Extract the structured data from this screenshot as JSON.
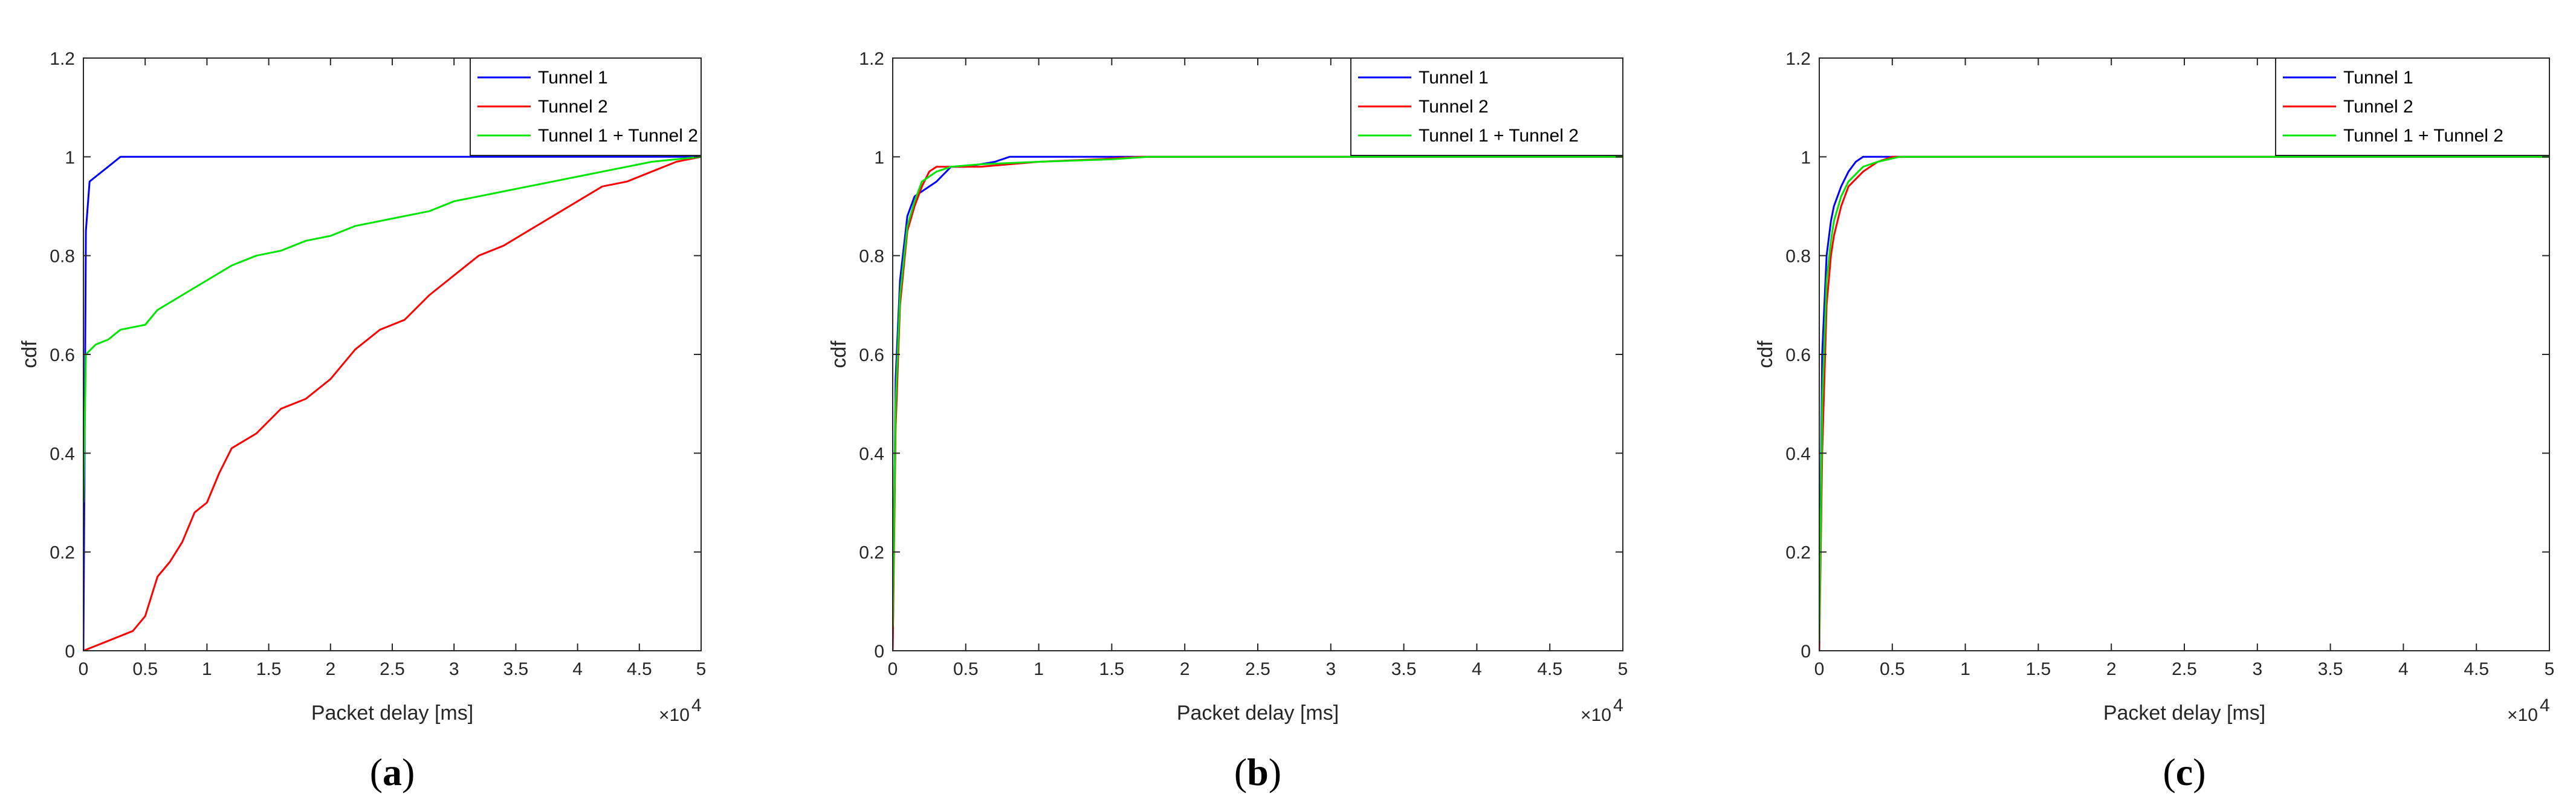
{
  "chart_data": [
    {
      "type": "line",
      "panel_label": "a",
      "xlabel": "Packet delay [ms]",
      "ylabel": "cdf",
      "x_exponent_label": "×10",
      "x_exponent_power": "4",
      "xlim": [
        0,
        5
      ],
      "ylim": [
        0,
        1.2
      ],
      "xticks": [
        0,
        0.5,
        1,
        1.5,
        2,
        2.5,
        3,
        3.5,
        4,
        4.5,
        5
      ],
      "xtick_labels": [
        "0",
        "0.5",
        "1",
        "1.5",
        "2",
        "2.5",
        "3",
        "3.5",
        "4",
        "4.5",
        "5"
      ],
      "yticks": [
        0,
        0.2,
        0.4,
        0.6,
        0.8,
        1,
        1.2
      ],
      "ytick_labels": [
        "0",
        "0.2",
        "0.4",
        "0.6",
        "0.8",
        "1",
        "1.2"
      ],
      "legend_position": "top-right",
      "series": [
        {
          "name": "Tunnel 1",
          "color": "#0000ff",
          "x": [
            0,
            0.02,
            0.05,
            0.1,
            0.2,
            0.25,
            0.3,
            5
          ],
          "y": [
            0,
            0.85,
            0.95,
            0.96,
            0.98,
            0.99,
            1.0,
            1.0
          ]
        },
        {
          "name": "Tunnel 2",
          "color": "#ff0000",
          "x": [
            0,
            0.2,
            0.4,
            0.5,
            0.6,
            0.7,
            0.8,
            0.9,
            1.0,
            1.1,
            1.2,
            1.4,
            1.6,
            1.8,
            2.0,
            2.2,
            2.4,
            2.6,
            2.8,
            3.0,
            3.2,
            3.4,
            3.6,
            3.8,
            4.0,
            4.2,
            4.4,
            4.6,
            4.8,
            5.0
          ],
          "y": [
            0,
            0.02,
            0.04,
            0.07,
            0.15,
            0.18,
            0.22,
            0.28,
            0.3,
            0.36,
            0.41,
            0.44,
            0.49,
            0.51,
            0.55,
            0.61,
            0.65,
            0.67,
            0.72,
            0.76,
            0.8,
            0.82,
            0.85,
            0.88,
            0.91,
            0.94,
            0.95,
            0.97,
            0.99,
            1.0
          ]
        },
        {
          "name": "Tunnel 1 + Tunnel 2",
          "color": "#00e600",
          "x": [
            0,
            0.02,
            0.1,
            0.2,
            0.3,
            0.5,
            0.6,
            0.8,
            1.0,
            1.2,
            1.4,
            1.6,
            1.8,
            2.0,
            2.2,
            2.4,
            2.6,
            2.8,
            3.0,
            3.2,
            3.4,
            3.6,
            3.8,
            4.0,
            4.2,
            4.4,
            4.6,
            4.8,
            5.0
          ],
          "y": [
            0.3,
            0.6,
            0.62,
            0.63,
            0.65,
            0.66,
            0.69,
            0.72,
            0.75,
            0.78,
            0.8,
            0.81,
            0.83,
            0.84,
            0.86,
            0.87,
            0.88,
            0.89,
            0.91,
            0.92,
            0.93,
            0.94,
            0.95,
            0.96,
            0.97,
            0.98,
            0.99,
            0.995,
            1.0
          ]
        }
      ]
    },
    {
      "type": "line",
      "panel_label": "b",
      "xlabel": "Packet delay [ms]",
      "ylabel": "cdf",
      "x_exponent_label": "×10",
      "x_exponent_power": "4",
      "xlim": [
        0,
        5
      ],
      "ylim": [
        0,
        1.2
      ],
      "xticks": [
        0,
        0.5,
        1,
        1.5,
        2,
        2.5,
        3,
        3.5,
        4,
        4.5,
        5
      ],
      "xtick_labels": [
        "0",
        "0.5",
        "1",
        "1.5",
        "2",
        "2.5",
        "3",
        "3.5",
        "4",
        "4.5",
        "5"
      ],
      "yticks": [
        0,
        0.2,
        0.4,
        0.6,
        0.8,
        1,
        1.2
      ],
      "ytick_labels": [
        "0",
        "0.2",
        "0.4",
        "0.6",
        "0.8",
        "1",
        "1.2"
      ],
      "legend_position": "top-right",
      "series": [
        {
          "name": "Tunnel 1",
          "color": "#0000ff",
          "x": [
            0,
            0.02,
            0.05,
            0.1,
            0.15,
            0.2,
            0.3,
            0.4,
            0.5,
            0.7,
            0.8,
            1.0,
            1.2,
            1.7,
            5
          ],
          "y": [
            0,
            0.55,
            0.75,
            0.88,
            0.92,
            0.93,
            0.95,
            0.98,
            0.98,
            0.99,
            1.0,
            1.0,
            1.0,
            1.0,
            1.0
          ]
        },
        {
          "name": "Tunnel 2",
          "color": "#ff0000",
          "x": [
            0,
            0.02,
            0.05,
            0.1,
            0.15,
            0.2,
            0.25,
            0.3,
            0.4,
            0.6,
            1.0,
            1.4,
            1.7,
            5
          ],
          "y": [
            0,
            0.45,
            0.7,
            0.85,
            0.9,
            0.94,
            0.97,
            0.98,
            0.98,
            0.98,
            0.99,
            0.995,
            1.0,
            1.0
          ]
        },
        {
          "name": "Tunnel 1 + Tunnel 2",
          "color": "#00e600",
          "x": [
            0,
            0.02,
            0.05,
            0.1,
            0.15,
            0.2,
            0.3,
            0.4,
            0.6,
            1.0,
            1.5,
            1.75,
            5
          ],
          "y": [
            0.05,
            0.5,
            0.72,
            0.86,
            0.91,
            0.95,
            0.97,
            0.98,
            0.985,
            0.99,
            0.995,
            1.0,
            1.0
          ]
        }
      ]
    },
    {
      "type": "line",
      "panel_label": "c",
      "xlabel": "Packet delay [ms]",
      "ylabel": "cdf",
      "x_exponent_label": "×10",
      "x_exponent_power": "4",
      "xlim": [
        0,
        5
      ],
      "ylim": [
        0,
        1.2
      ],
      "xticks": [
        0,
        0.5,
        1,
        1.5,
        2,
        2.5,
        3,
        3.5,
        4,
        4.5,
        5
      ],
      "xtick_labels": [
        "0",
        "0.5",
        "1",
        "1.5",
        "2",
        "2.5",
        "3",
        "3.5",
        "4",
        "4.5",
        "5"
      ],
      "yticks": [
        0,
        0.2,
        0.4,
        0.6,
        0.8,
        1,
        1.2
      ],
      "ytick_labels": [
        "0",
        "0.2",
        "0.4",
        "0.6",
        "0.8",
        "1",
        "1.2"
      ],
      "legend_position": "top-right",
      "series": [
        {
          "name": "Tunnel 1",
          "color": "#0000ff",
          "x": [
            0,
            0.02,
            0.05,
            0.08,
            0.1,
            0.15,
            0.2,
            0.25,
            0.3,
            0.35,
            0.4,
            5
          ],
          "y": [
            0,
            0.6,
            0.8,
            0.87,
            0.9,
            0.94,
            0.97,
            0.99,
            1.0,
            1.0,
            1.0,
            1.0
          ]
        },
        {
          "name": "Tunnel 2",
          "color": "#ff0000",
          "x": [
            0,
            0.02,
            0.05,
            0.08,
            0.1,
            0.15,
            0.2,
            0.3,
            0.4,
            0.5,
            5
          ],
          "y": [
            0,
            0.4,
            0.7,
            0.8,
            0.84,
            0.9,
            0.94,
            0.97,
            0.99,
            1.0,
            1.0
          ]
        },
        {
          "name": "Tunnel 1 + Tunnel 2",
          "color": "#00e600",
          "x": [
            0,
            0.02,
            0.05,
            0.08,
            0.1,
            0.15,
            0.2,
            0.3,
            0.4,
            0.55,
            5
          ],
          "y": [
            0.02,
            0.5,
            0.75,
            0.83,
            0.87,
            0.92,
            0.95,
            0.98,
            0.99,
            1.0,
            1.0
          ]
        }
      ]
    }
  ]
}
